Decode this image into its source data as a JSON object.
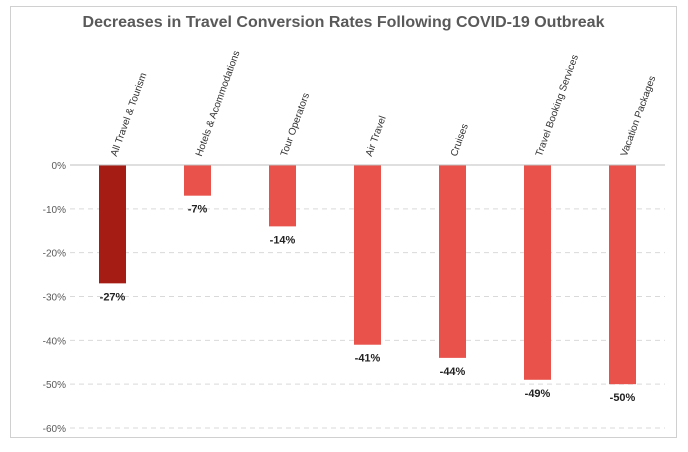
{
  "chart_data": {
    "type": "bar",
    "title": "Decreases in Travel Conversion Rates Following COVID-19 Outbreak",
    "categories": [
      "All Travel & Tourism",
      "Hotels & Acommodations",
      "Tour Operators",
      "Air Travel",
      "Cruises",
      "Travel Booking Services",
      "Vacation Packages"
    ],
    "values": [
      -27,
      -7,
      -14,
      -41,
      -44,
      -49,
      -50
    ],
    "data_labels": [
      "-27%",
      "-7%",
      "-14%",
      "-41%",
      "-44%",
      "-49%",
      "-50%"
    ],
    "ylim": [
      -60,
      0
    ],
    "yticks": [
      0,
      -10,
      -20,
      -30,
      -40,
      -50,
      -60
    ],
    "ytick_labels": [
      "0%",
      "-10%",
      "-20%",
      "-30%",
      "-40%",
      "-50%",
      "-60%"
    ],
    "grid": true,
    "colors": {
      "highlight": "#A51C14",
      "bar": "#E8524A",
      "grid": "#d9d9d9",
      "axis_text": "#595959"
    }
  }
}
